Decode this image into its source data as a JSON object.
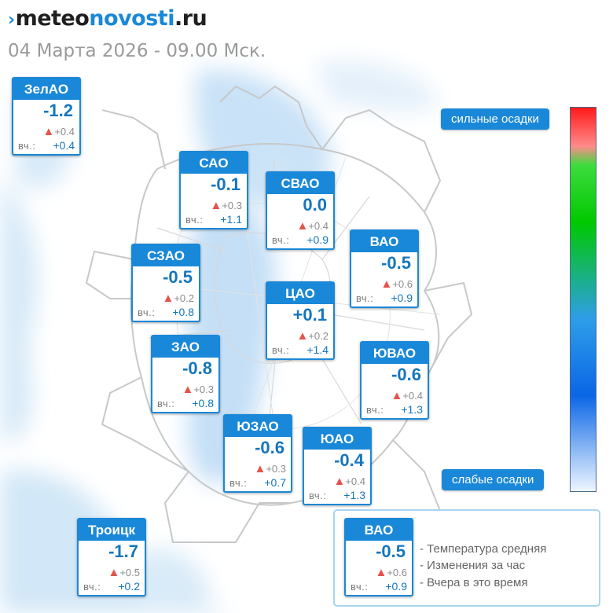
{
  "header": {
    "logo_part1": "meteo",
    "logo_part2": "novosti",
    "logo_part3": ".ru",
    "logo_mark": "›",
    "date": "04 Марта 2026 - 09.00 Мск."
  },
  "districts": [
    {
      "key": "zelao",
      "name": "ЗелАО",
      "temp": "-1.2",
      "change": "+0.4",
      "yesterday_label": "вч.:",
      "yesterday": "+0.4"
    },
    {
      "key": "sao",
      "name": "САО",
      "temp": "-0.1",
      "change": "+0.3",
      "yesterday_label": "вч.:",
      "yesterday": "+1.1"
    },
    {
      "key": "svao",
      "name": "СВАО",
      "temp": "0.0",
      "change": "+0.4",
      "yesterday_label": "вч.:",
      "yesterday": "+0.9"
    },
    {
      "key": "vao",
      "name": "ВАО",
      "temp": "-0.5",
      "change": "+0.6",
      "yesterday_label": "вч.:",
      "yesterday": "+0.9"
    },
    {
      "key": "szao",
      "name": "СЗАО",
      "temp": "-0.5",
      "change": "+0.2",
      "yesterday_label": "вч.:",
      "yesterday": "+0.8"
    },
    {
      "key": "cao",
      "name": "ЦАО",
      "temp": "+0.1",
      "change": "+0.2",
      "yesterday_label": "вч.:",
      "yesterday": "+1.4"
    },
    {
      "key": "zao",
      "name": "ЗАО",
      "temp": "-0.8",
      "change": "+0.3",
      "yesterday_label": "вч.:",
      "yesterday": "+0.8"
    },
    {
      "key": "yuvao",
      "name": "ЮВАО",
      "temp": "-0.6",
      "change": "+0.4",
      "yesterday_label": "вч.:",
      "yesterday": "+1.3"
    },
    {
      "key": "yuzao",
      "name": "ЮЗАО",
      "temp": "-0.6",
      "change": "+0.3",
      "yesterday_label": "вч.:",
      "yesterday": "+0.7"
    },
    {
      "key": "yuao",
      "name": "ЮАО",
      "temp": "-0.4",
      "change": "+0.4",
      "yesterday_label": "вч.:",
      "yesterday": "+1.3"
    },
    {
      "key": "troick",
      "name": "Троицк",
      "temp": "-1.7",
      "change": "+0.5",
      "yesterday_label": "вч.:",
      "yesterday": "+0.2"
    }
  ],
  "scale": {
    "top_label": "сильные осадки",
    "bottom_label": "слабые осадки"
  },
  "legend": {
    "sample": {
      "name": "ВАО",
      "temp": "-0.5",
      "change": "+0.6",
      "yesterday_label": "вч.:",
      "yesterday": "+0.9"
    },
    "line1": "- Температура средняя",
    "line2": "- Изменения за час",
    "line3": "- Вчера в это время"
  },
  "colors": {
    "accent": "#1a88d8",
    "change_triangle": "#e5534b",
    "precipitation_light": "#cfe6f8"
  }
}
